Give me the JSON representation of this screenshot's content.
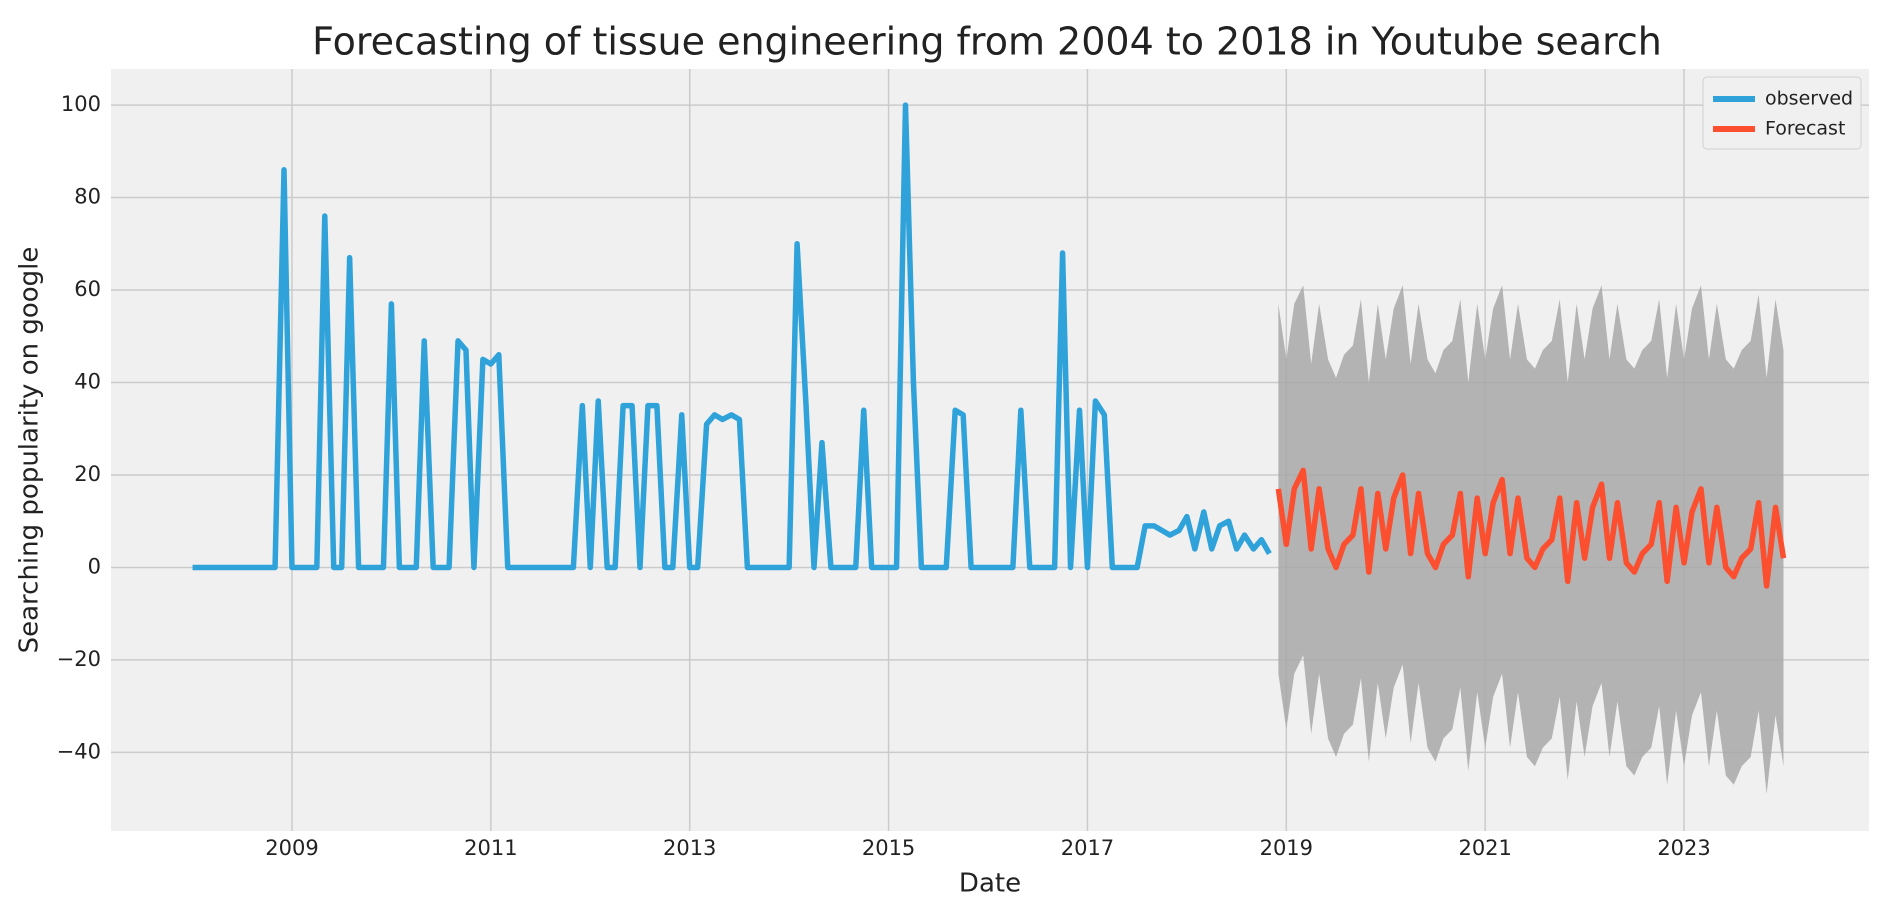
{
  "chart_data": {
    "type": "line",
    "title": "Forecasting of tissue engineering from 2004 to 2018 in Youtube search",
    "x_label": "Date",
    "y_label": "Searching popularity on google",
    "xlim": [
      2007.18,
      2024.86
    ],
    "ylim": [
      -57,
      107.8
    ],
    "xticks": [
      2009,
      2011,
      2013,
      2015,
      2017,
      2019,
      2021,
      2023
    ],
    "yticks": [
      {
        "value": -40,
        "label": "−40"
      },
      {
        "value": -20,
        "label": "−20"
      },
      0,
      20,
      40,
      60,
      80,
      100
    ],
    "grid": true,
    "legend": "upper right",
    "band_color": "#a8a8a8",
    "series": [
      {
        "name": "observed",
        "color": "#30a2da",
        "x": [
          2008,
          2008.08,
          2008.17,
          2008.25,
          2008.33,
          2008.42,
          2008.5,
          2008.58,
          2008.67,
          2008.75,
          2008.83,
          2008.92,
          2009,
          2009.08,
          2009.17,
          2009.25,
          2009.33,
          2009.42,
          2009.5,
          2009.58,
          2009.67,
          2009.75,
          2009.83,
          2009.92,
          2010,
          2010.08,
          2010.17,
          2010.25,
          2010.33,
          2010.42,
          2010.5,
          2010.58,
          2010.67,
          2010.75,
          2010.83,
          2010.92,
          2011,
          2011.08,
          2011.17,
          2011.25,
          2011.33,
          2011.42,
          2011.5,
          2011.58,
          2011.67,
          2011.75,
          2011.83,
          2011.92,
          2012,
          2012.08,
          2012.17,
          2012.25,
          2012.33,
          2012.42,
          2012.5,
          2012.58,
          2012.67,
          2012.75,
          2012.83,
          2012.92,
          2013,
          2013.08,
          2013.17,
          2013.25,
          2013.33,
          2013.42,
          2013.5,
          2013.58,
          2013.67,
          2013.75,
          2013.83,
          2013.92,
          2014,
          2014.08,
          2014.17,
          2014.25,
          2014.33,
          2014.42,
          2014.5,
          2014.58,
          2014.67,
          2014.75,
          2014.83,
          2014.92,
          2015,
          2015.08,
          2015.17,
          2015.25,
          2015.33,
          2015.42,
          2015.5,
          2015.58,
          2015.67,
          2015.75,
          2015.83,
          2015.92,
          2016,
          2016.08,
          2016.17,
          2016.25,
          2016.33,
          2016.42,
          2016.5,
          2016.58,
          2016.67,
          2016.75,
          2016.83,
          2016.92,
          2017,
          2017.08,
          2017.17,
          2017.25,
          2017.33,
          2017.42,
          2017.5,
          2017.58,
          2017.67,
          2017.75,
          2017.83,
          2017.92,
          2018,
          2018.08,
          2018.17,
          2018.25,
          2018.33,
          2018.42,
          2018.5,
          2018.58,
          2018.67,
          2018.75,
          2018.83
        ],
        "values": [
          0,
          0,
          0,
          0,
          0,
          0,
          0,
          0,
          0,
          0,
          0,
          86,
          0,
          0,
          0,
          0,
          76,
          0,
          0,
          67,
          0,
          0,
          0,
          0,
          57,
          0,
          0,
          0,
          49,
          0,
          0,
          0,
          49,
          47,
          0,
          45,
          44,
          46,
          0,
          0,
          0,
          0,
          0,
          0,
          0,
          0,
          0,
          35,
          0,
          36,
          0,
          0,
          35,
          35,
          0,
          35,
          35,
          0,
          0,
          33,
          0,
          0,
          31,
          33,
          32,
          33,
          32,
          0,
          0,
          0,
          0,
          0,
          0,
          70,
          35,
          0,
          27,
          0,
          0,
          0,
          0,
          34,
          0,
          0,
          0,
          0,
          100,
          40,
          0,
          0,
          0,
          0,
          34,
          33,
          0,
          0,
          0,
          0,
          0,
          0,
          34,
          0,
          0,
          0,
          0,
          68,
          0,
          34,
          0,
          36,
          33,
          0,
          0,
          0,
          0,
          9,
          9,
          8,
          7,
          8,
          11,
          4,
          12,
          4,
          9,
          10,
          4,
          7,
          4,
          6,
          3
        ]
      },
      {
        "name": "Forecast",
        "color": "#fc4f30",
        "x": [
          2018.92,
          2019,
          2019.08,
          2019.17,
          2019.25,
          2019.33,
          2019.42,
          2019.5,
          2019.58,
          2019.67,
          2019.75,
          2019.83,
          2019.92,
          2020,
          2020.08,
          2020.17,
          2020.25,
          2020.33,
          2020.42,
          2020.5,
          2020.58,
          2020.67,
          2020.75,
          2020.83,
          2020.92,
          2021,
          2021.08,
          2021.17,
          2021.25,
          2021.33,
          2021.42,
          2021.5,
          2021.58,
          2021.67,
          2021.75,
          2021.83,
          2021.92,
          2022,
          2022.08,
          2022.17,
          2022.25,
          2022.33,
          2022.42,
          2022.5,
          2022.58,
          2022.67,
          2022.75,
          2022.83,
          2022.92,
          2023,
          2023.08,
          2023.17,
          2023.25,
          2023.33,
          2023.42,
          2023.5,
          2023.58,
          2023.67,
          2023.75,
          2023.83,
          2023.92,
          2024
        ],
        "values": [
          17,
          5,
          17,
          21,
          4,
          17,
          4,
          0,
          5,
          7,
          17,
          -1,
          16,
          4,
          15,
          20,
          3,
          16,
          3,
          0,
          5,
          7,
          16,
          -2,
          15,
          3,
          14,
          19,
          3,
          15,
          2,
          0,
          4,
          6,
          15,
          -3,
          14,
          2,
          13,
          18,
          2,
          14,
          1,
          -1,
          3,
          5,
          14,
          -3,
          13,
          1,
          12,
          17,
          1,
          13,
          0,
          -2,
          2,
          4,
          14,
          -4,
          13,
          2
        ],
        "upper": [
          57,
          45,
          57,
          61,
          44,
          57,
          45,
          41,
          46,
          48,
          58,
          40,
          57,
          45,
          56,
          61,
          44,
          57,
          45,
          42,
          47,
          49,
          58,
          40,
          57,
          45,
          56,
          61,
          45,
          57,
          45,
          43,
          47,
          49,
          58,
          40,
          57,
          45,
          56,
          61,
          45,
          57,
          45,
          43,
          47,
          49,
          58,
          41,
          57,
          45,
          56,
          61,
          45,
          57,
          45,
          43,
          47,
          49,
          59,
          41,
          58,
          47
        ],
        "lower": [
          -23,
          -35,
          -23,
          -19,
          -36,
          -23,
          -37,
          -41,
          -36,
          -34,
          -24,
          -42,
          -25,
          -37,
          -26,
          -21,
          -38,
          -25,
          -39,
          -42,
          -37,
          -35,
          -26,
          -44,
          -27,
          -39,
          -28,
          -23,
          -39,
          -27,
          -41,
          -43,
          -39,
          -37,
          -28,
          -46,
          -29,
          -41,
          -30,
          -25,
          -41,
          -29,
          -43,
          -45,
          -41,
          -39,
          -30,
          -47,
          -31,
          -43,
          -32,
          -27,
          -43,
          -31,
          -45,
          -47,
          -43,
          -41,
          -31,
          -49,
          -32,
          -43
        ]
      }
    ]
  }
}
